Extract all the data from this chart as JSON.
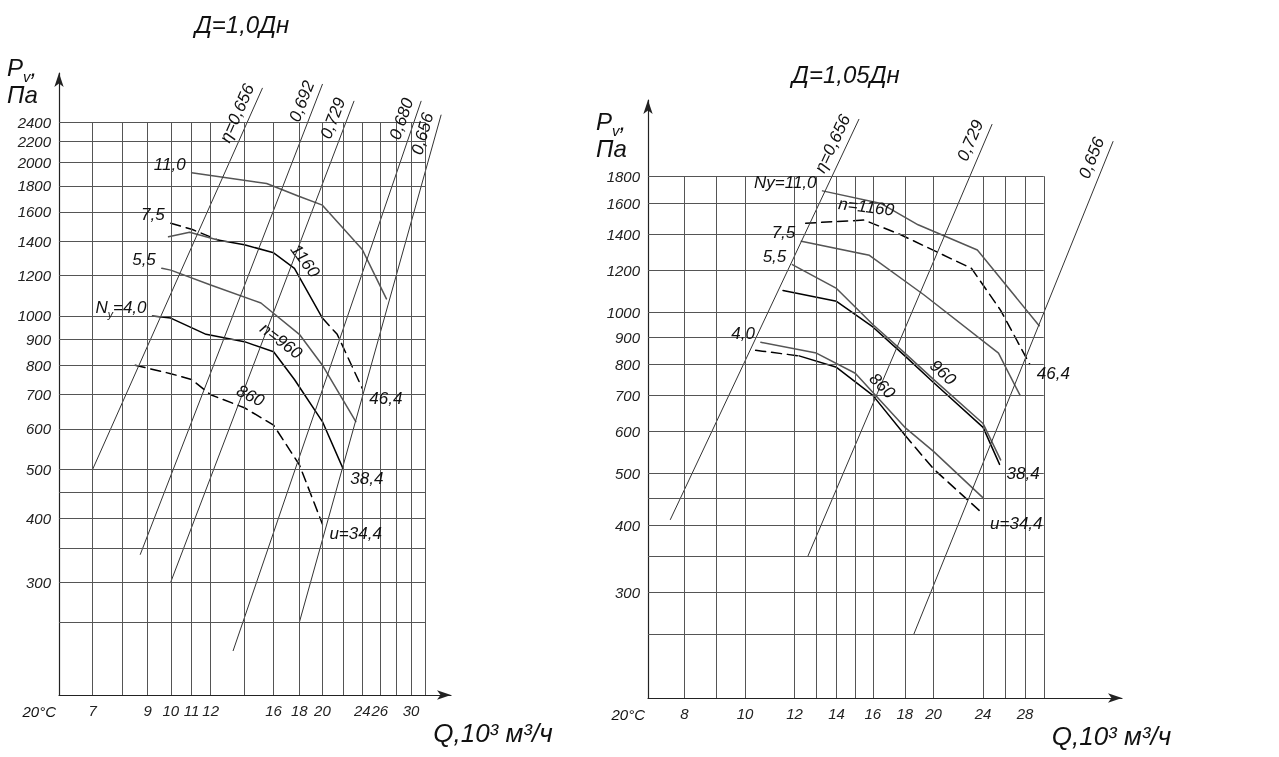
{
  "chart_data": [
    {
      "type": "line",
      "title": "Д=1,0Дн",
      "xlabel": "Q,10³ м³/ч",
      "ylabel": "P$_{v}$, Па",
      "xlim": [
        6,
        36
      ],
      "ylim": [
        180,
        3000
      ],
      "xticks": [
        7,
        {
          "value": 8,
          "label": null
        },
        9,
        10,
        11,
        12,
        {
          "value": 14,
          "label": null
        },
        16,
        18,
        20,
        {
          "value": 22,
          "label": null
        },
        24,
        26,
        {
          "value": 28,
          "label": null
        },
        30,
        {
          "value": 32,
          "label": null
        }
      ],
      "yticks": [
        {
          "value": 250,
          "label": null
        },
        300,
        {
          "value": 350,
          "label": null
        },
        400,
        {
          "value": 450,
          "label": null
        },
        500,
        600,
        700,
        800,
        900,
        1000,
        1200,
        1400,
        1600,
        1800,
        2000,
        2200,
        2400
      ],
      "log": "xy",
      "grid": true,
      "marker": "none",
      "series": [
        {
          "color": "#000000",
          "line_style": "dashed",
          "x": [
            8.5,
            10,
            11,
            12,
            14,
            16,
            18,
            20
          ],
          "values": [
            800,
            770,
            750,
            700,
            660,
            610,
            510,
            390
          ]
        },
        {
          "color": "#000000",
          "line_style": "solid",
          "x": [
            9.2,
            10,
            11.75,
            14,
            16,
            17.6,
            20,
            22
          ],
          "values": [
            1000,
            990,
            920,
            890,
            850,
            750,
            620,
            500
          ]
        },
        {
          "color": "#555555",
          "line_style": "solid",
          "x": [
            9.6,
            10,
            12,
            15.1,
            18,
            20,
            23.3
          ],
          "values": [
            1240,
            1230,
            1150,
            1060,
            920,
            800,
            620
          ]
        },
        {
          "color": "#000000",
          "line_style": "dashed",
          "x": [
            10,
            11,
            12.4
          ],
          "values": [
            1520,
            1480,
            1410
          ]
        },
        {
          "color": "#000000",
          "line_style": "solid",
          "x": [
            12.4,
            14,
            16,
            17.6,
            20
          ],
          "values": [
            1410,
            1380,
            1330,
            1240,
            990
          ]
        },
        {
          "color": "#000000",
          "line_style": "dashed",
          "x": [
            20,
            21.4,
            24
          ],
          "values": [
            990,
            920,
            720
          ]
        },
        {
          "color": "#555555",
          "line_style": "solid",
          "x": [
            9.9,
            10.9,
            12.4
          ],
          "values": [
            1430,
            1460,
            1410
          ]
        },
        {
          "color": "#555555",
          "line_style": "solid",
          "x": [
            11,
            15.5,
            17.9,
            20,
            24,
            26.8
          ],
          "values": [
            1910,
            1820,
            1720,
            1650,
            1350,
            1080
          ]
        },
        {
          "color": "#333333",
          "line_style": "solid",
          "x": [
            7,
            15.2
          ],
          "values": [
            500,
            2800
          ]
        },
        {
          "color": "#333333",
          "line_style": "solid",
          "x": [
            8.7,
            20
          ],
          "values": [
            340,
            2850
          ]
        },
        {
          "color": "#333333",
          "line_style": "solid",
          "x": [
            10,
            23.1
          ],
          "values": [
            300,
            2640
          ]
        },
        {
          "color": "#333333",
          "line_style": "solid",
          "x": [
            13.3,
            31.4
          ],
          "values": [
            220,
            2640
          ]
        },
        {
          "color": "#333333",
          "line_style": "solid",
          "x": [
            18,
            34.4
          ],
          "values": [
            250,
            2480
          ]
        }
      ],
      "annotations": [
        "20°C",
        {
          "text": "N$_{y}$=4,0",
          "x": 9.2,
          "y": 1000
        },
        {
          "text": "5,5",
          "x": 9.6,
          "y": 1240
        },
        {
          "text": "7,5",
          "x": 10,
          "y": 1520
        },
        {
          "text": "11,0",
          "x": 11,
          "y": 1910
        },
        {
          "text": "n=960",
          "x": 16,
          "y": 850
        },
        {
          "text": "1160",
          "x": 17.6,
          "y": 1240
        },
        {
          "text": "860",
          "x": 14,
          "y": 660
        },
        {
          "text": "u=34,4",
          "x": 20,
          "y": 390
        },
        {
          "text": "38,4",
          "x": 22,
          "y": 500
        },
        {
          "text": "46,4",
          "x": 24,
          "y": 720
        },
        {
          "text": "η=0,656",
          "x": 15.2,
          "y": 2800
        },
        {
          "text": "0,692",
          "x": 20,
          "y": 2850
        },
        {
          "text": "0,729",
          "x": 23.1,
          "y": 2640
        },
        {
          "text": "0,680",
          "x": 31.4,
          "y": 2640
        },
        {
          "text": "0,656",
          "x": 34.4,
          "y": 2480
        }
      ]
    },
    {
      "type": "line",
      "title": "Д=1,05Дн",
      "xlabel": "Q,10³ м³/ч",
      "ylabel": "P$_{v}$, Па",
      "xlim": [
        7,
        40
      ],
      "ylim": [
        190,
        2500
      ],
      "xticks": [
        8,
        {
          "value": 9,
          "label": null
        },
        10,
        12,
        {
          "value": 13,
          "label": null
        },
        14,
        {
          "value": 15,
          "label": null
        },
        16,
        18,
        20,
        24,
        {
          "value": 26,
          "label": null
        },
        28,
        {
          "value": 30,
          "label": null
        }
      ],
      "yticks": [
        {
          "value": 250,
          "label": null
        },
        300,
        {
          "value": 350,
          "label": null
        },
        400,
        {
          "value": 450,
          "label": null
        },
        500,
        600,
        700,
        800,
        900,
        1000,
        1200,
        1400,
        1600,
        1800
      ],
      "log": "xy",
      "grid": true,
      "marker": "none",
      "series": [
        {
          "color": "#555555",
          "line_style": "solid",
          "x": [
            13.3,
            16.5,
            18.9,
            23.5,
            29.5
          ],
          "values": [
            1690,
            1600,
            1460,
            1310,
            945
          ]
        },
        {
          "color": "#000000",
          "line_style": "dashed",
          "x": [
            12.5,
            15.5,
            17.7,
            23,
            25.6,
            28.5
          ],
          "values": [
            1470,
            1490,
            1400,
            1210,
            1010,
            800
          ]
        },
        {
          "color": "#555555",
          "line_style": "solid",
          "x": [
            12.3,
            15.8,
            19.3,
            25.4,
            27.5
          ],
          "values": [
            1360,
            1280,
            1080,
            840,
            700
          ]
        },
        {
          "color": "#555555",
          "line_style": "solid",
          "x": [
            11.9,
            14,
            16,
            18,
            20,
            24,
            25.6
          ],
          "values": [
            1230,
            1110,
            950,
            840,
            750,
            620,
            530
          ]
        },
        {
          "color": "#000000",
          "line_style": "solid",
          "x": [
            11.5,
            14,
            16,
            18,
            20,
            24,
            25.5
          ],
          "values": [
            1100,
            1050,
            940,
            830,
            740,
            610,
            520
          ]
        },
        {
          "color": "#555555",
          "line_style": "solid",
          "x": [
            10.6,
            13,
            15,
            18,
            20,
            24
          ],
          "values": [
            880,
            840,
            770,
            610,
            550,
            450
          ]
        },
        {
          "color": "#000000",
          "line_style": "dashed",
          "x": [
            10.4,
            12.2
          ],
          "values": [
            850,
            830
          ]
        },
        {
          "color": "#000000",
          "line_style": "solid",
          "x": [
            12.2,
            14,
            16,
            18
          ],
          "values": [
            830,
            790,
            700,
            590
          ]
        },
        {
          "color": "#000000",
          "line_style": "dashed",
          "x": [
            18,
            20,
            24
          ],
          "values": [
            590,
            510,
            420
          ]
        },
        {
          "color": "#333333",
          "line_style": "solid",
          "x": [
            7.6,
            15.2
          ],
          "values": [
            410,
            2300
          ]
        },
        {
          "color": "#333333",
          "line_style": "solid",
          "x": [
            12.6,
            24.8
          ],
          "values": [
            350,
            2250
          ]
        },
        {
          "color": "#333333",
          "line_style": "solid",
          "x": [
            18.6,
            38.7
          ],
          "values": [
            250,
            2090
          ]
        }
      ],
      "annotations": [
        "20°C",
        {
          "text": "Ny=11,0",
          "x": 13.3,
          "y": 1690
        },
        {
          "text": "7,5",
          "x": 12.3,
          "y": 1360
        },
        {
          "text": "5,5",
          "x": 11.9,
          "y": 1230
        },
        {
          "text": "4,0",
          "x": 10.6,
          "y": 880
        },
        {
          "text": "n=1160",
          "x": 15.5,
          "y": 1490
        },
        {
          "text": "960",
          "x": 20,
          "y": 740
        },
        {
          "text": "860",
          "x": 16,
          "y": 700
        },
        {
          "text": "46,4",
          "x": 28.5,
          "y": 800
        },
        {
          "text": "38,4",
          "x": 25.5,
          "y": 520
        },
        {
          "text": "u=34,4",
          "x": 24,
          "y": 420
        },
        {
          "text": "η=0,656",
          "x": 15.2,
          "y": 2300
        },
        {
          "text": "0,729",
          "x": 24.8,
          "y": 2250
        },
        {
          "text": "0,656",
          "x": 38.7,
          "y": 2090
        }
      ]
    }
  ]
}
